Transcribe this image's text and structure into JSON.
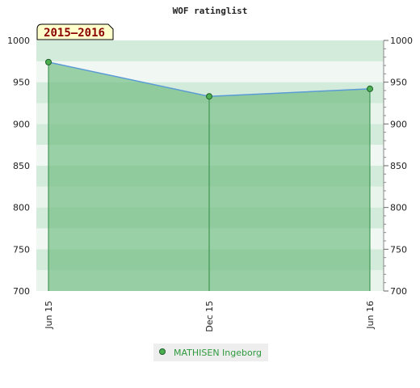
{
  "chart_data": {
    "type": "area",
    "title": "WOF ratinglist",
    "badge": "2015–2016",
    "x": [
      "Jun 15",
      "Dec 15",
      "Jun 16"
    ],
    "series": [
      {
        "name": "MATHISEN Ingeborg",
        "values": [
          974,
          933,
          942
        ]
      }
    ],
    "ylim": [
      700,
      1000
    ],
    "yticks": [
      700,
      750,
      800,
      850,
      900,
      950,
      1000
    ],
    "xlabel": "",
    "ylabel": "",
    "grid": true,
    "legend_position": "bottom",
    "colors": {
      "line": "#5b9bd5",
      "fill": "#6cba7d",
      "marker": "#4caf50",
      "badge_bg": "#ffffcc",
      "legend_text": "#2e9a3e"
    }
  }
}
